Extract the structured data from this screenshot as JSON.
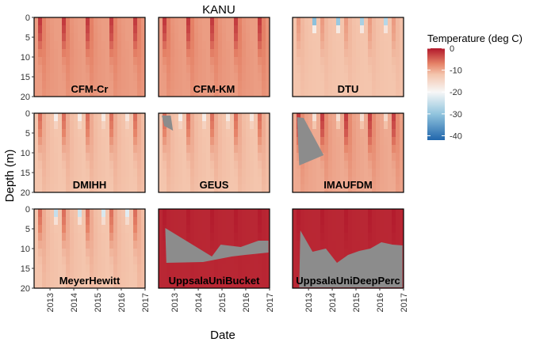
{
  "chart_data": {
    "type": "heatmap",
    "title": "KANU",
    "xlabel": "Date",
    "ylabel": "Depth (m)",
    "x_ticks": [
      "2013",
      "2014",
      "2015",
      "2016",
      "2017"
    ],
    "xlim": [
      "2012-05-01",
      "2017-01-01"
    ],
    "y_ticks": [
      0,
      5,
      10,
      15,
      20
    ],
    "ylim": [
      20,
      0
    ],
    "y_inverted": true,
    "facet_layout": {
      "rows": 3,
      "cols": 3
    },
    "colorbar": {
      "title": "Temperature (deg C)",
      "ticks": [
        0,
        -10,
        -20,
        -30,
        -40
      ],
      "range": [
        -42,
        0
      ],
      "colors": {
        "0": "#b2182b",
        "-7": "#e58267",
        "-12": "#f4c5ad",
        "-20": "#f7f7f7",
        "-30": "#92c5de",
        "-42": "#2166ac"
      }
    },
    "missing_color": "#8c8c8c",
    "panels": [
      {
        "name": "CFM-Cr",
        "deep_temperature": -9,
        "summer_warming": "strong",
        "surface_cold_spikes": "none"
      },
      {
        "name": "CFM-KM",
        "deep_temperature": -9,
        "summer_warming": "strong",
        "surface_cold_spikes": "none"
      },
      {
        "name": "DTU",
        "deep_temperature": -12,
        "summer_warming": "weak",
        "surface_cold_spikes": "strong"
      },
      {
        "name": "DMIHH",
        "deep_temperature": -12,
        "summer_warming": "moderate",
        "surface_cold_spikes": "weak"
      },
      {
        "name": "GEUS",
        "deep_temperature": -12,
        "summer_warming": "moderate",
        "surface_cold_spikes": "weak"
      },
      {
        "name": "IMAUFDM",
        "deep_temperature": -10,
        "summer_warming": "strong",
        "surface_cold_spikes": "weak"
      },
      {
        "name": "MeyerHewitt",
        "deep_temperature": -12,
        "summer_warming": "moderate",
        "surface_cold_spikes": "moderate"
      },
      {
        "name": "UppsalaUniBucket",
        "deep_temperature": -1,
        "summer_warming": "strong",
        "surface_cold_spikes": "none"
      },
      {
        "name": "UppsalaUniDeepPerc",
        "deep_temperature": -1,
        "summer_warming": "strong",
        "surface_cold_spikes": "none"
      }
    ]
  }
}
